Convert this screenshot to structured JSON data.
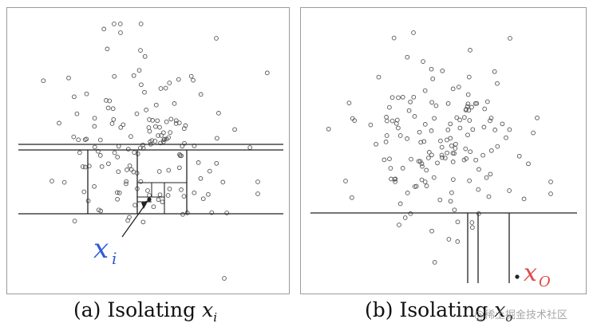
{
  "panels": [
    {
      "caption_prefix": "(a) Isolating ",
      "caption_var": "x",
      "caption_sub": "i",
      "label_base": "x",
      "label_sub": "i",
      "label_color": "#2e5bd8"
    },
    {
      "caption_prefix": "(b) Isolating ",
      "caption_var": "x",
      "caption_sub": "o",
      "label_base": "x",
      "label_sub": "O",
      "label_color": "#e04848"
    }
  ],
  "watermark": "@稀土掘金技术社区",
  "colors": {
    "point": "#555555",
    "line": "#222222",
    "frame": "#9b9b9b"
  }
}
